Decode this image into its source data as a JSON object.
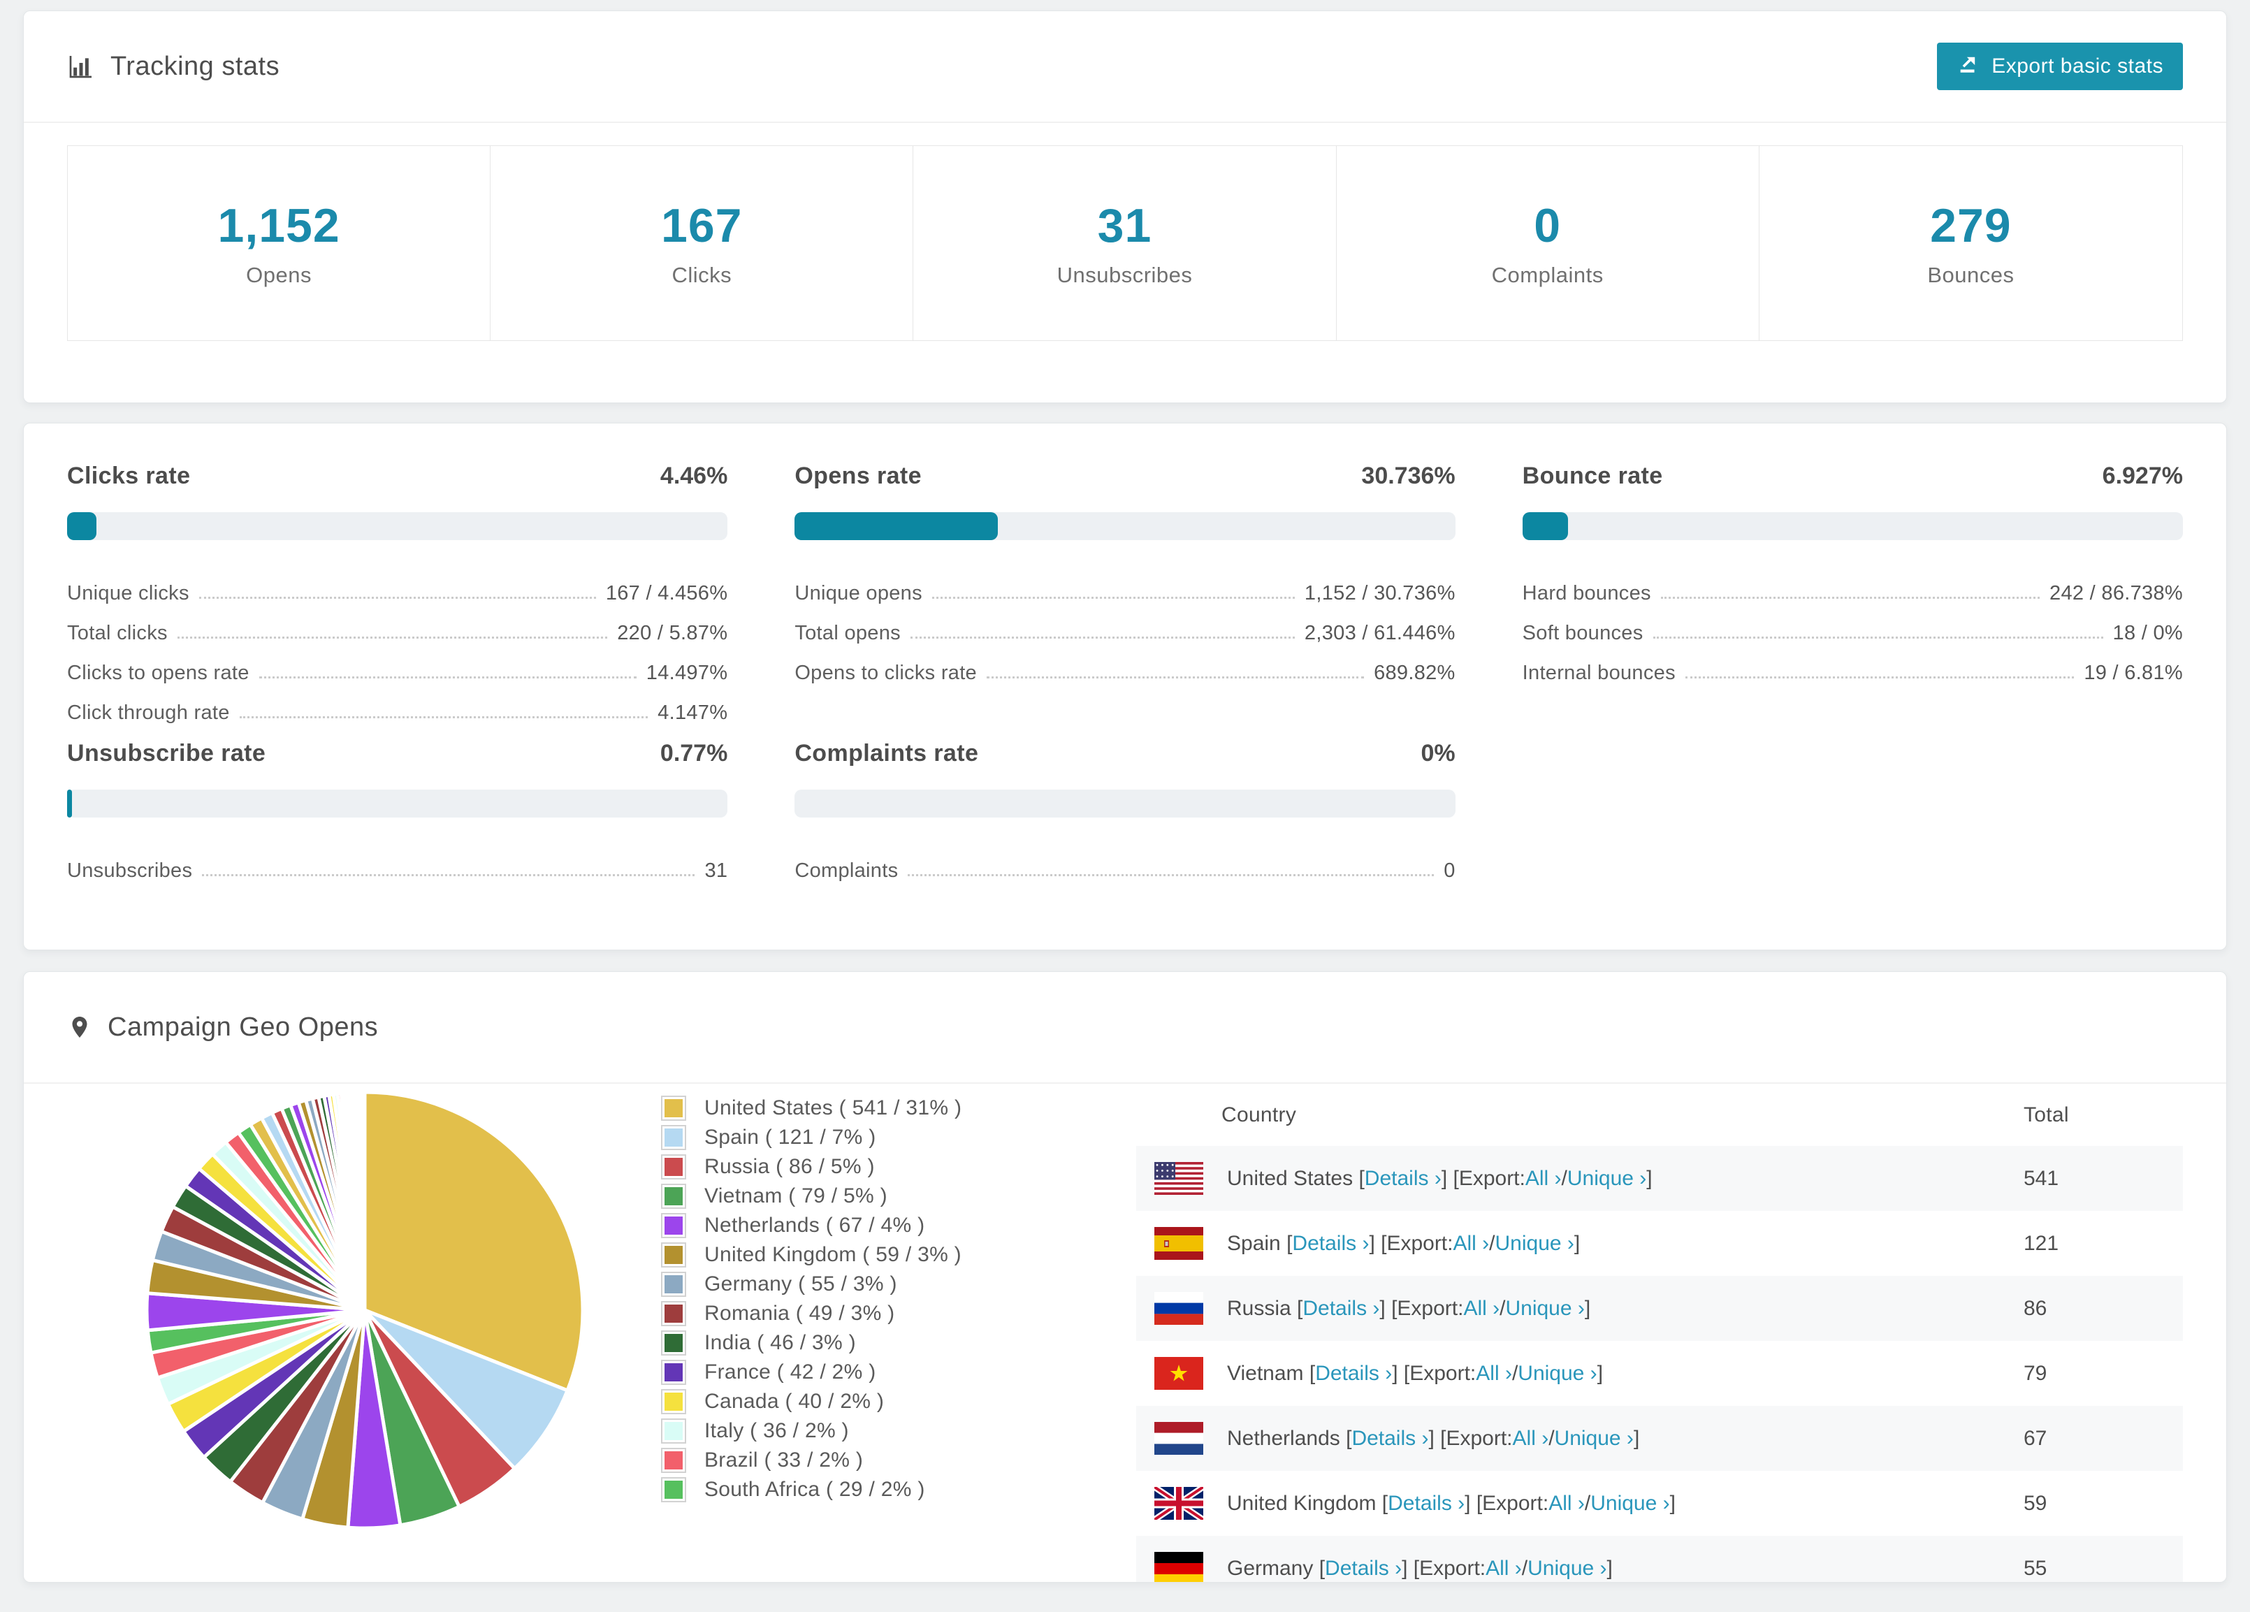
{
  "colors": {
    "accent": "#0c87a1",
    "number_teal": "#1b8aab",
    "link": "#2a96bb",
    "bar_track": "#edf0f3",
    "stripe": "#f7f8f9",
    "button_bg": "#1a93ad"
  },
  "tracking": {
    "title": "Tracking stats",
    "export_button": "Export basic stats",
    "stats": [
      {
        "value": "1,152",
        "label": "Opens"
      },
      {
        "value": "167",
        "label": "Clicks"
      },
      {
        "value": "31",
        "label": "Unsubscribes"
      },
      {
        "value": "0",
        "label": "Complaints"
      },
      {
        "value": "279",
        "label": "Bounces"
      }
    ]
  },
  "rates": {
    "blocks": [
      {
        "title": "Clicks rate",
        "pct": "4.46%",
        "fill_pct": 4.46,
        "rows": [
          {
            "label": "Unique clicks",
            "value": "167 / 4.456%"
          },
          {
            "label": "Total clicks",
            "value": "220 / 5.87%"
          },
          {
            "label": "Clicks to opens rate",
            "value": "14.497%"
          },
          {
            "label": "Click through rate",
            "value": "4.147%"
          }
        ]
      },
      {
        "title": "Opens rate",
        "pct": "30.736%",
        "fill_pct": 30.736,
        "rows": [
          {
            "label": "Unique opens",
            "value": "1,152 / 30.736%"
          },
          {
            "label": "Total opens",
            "value": "2,303 / 61.446%"
          },
          {
            "label": "Opens to clicks rate",
            "value": "689.82%"
          }
        ]
      },
      {
        "title": "Bounce rate",
        "pct": "6.927%",
        "fill_pct": 6.927,
        "rows": [
          {
            "label": "Hard bounces",
            "value": "242 / 86.738%"
          },
          {
            "label": "Soft bounces",
            "value": "18 / 0%"
          },
          {
            "label": "Internal bounces",
            "value": "19 / 6.81%"
          }
        ]
      },
      {
        "title": "Unsubscribe rate",
        "pct": "0.77%",
        "fill_pct": 0.77,
        "rows": [
          {
            "label": "Unsubscribes",
            "value": "31"
          }
        ]
      },
      {
        "title": "Complaints rate",
        "pct": "0%",
        "fill_pct": 0,
        "rows": [
          {
            "label": "Complaints",
            "value": "0"
          }
        ]
      }
    ]
  },
  "geo": {
    "title": "Campaign Geo Opens",
    "table": {
      "col_country": "Country",
      "col_total": "Total",
      "tokens": {
        "open": " [",
        "close_open": "] [",
        "export_label": "Export: ",
        "slash": " / ",
        "close": "]"
      },
      "link_details": "Details ›",
      "link_all": "All ›",
      "link_unique": "Unique ›",
      "rows": [
        {
          "country": "United States",
          "flag": "us",
          "total": "541"
        },
        {
          "country": "Spain",
          "flag": "es",
          "total": "121"
        },
        {
          "country": "Russia",
          "flag": "ru",
          "total": "86"
        },
        {
          "country": "Vietnam",
          "flag": "vn",
          "total": "79"
        },
        {
          "country": "Netherlands",
          "flag": "nl",
          "total": "67"
        },
        {
          "country": "United Kingdom",
          "flag": "gb",
          "total": "59"
        },
        {
          "country": "Germany",
          "flag": "de",
          "total": "55",
          "partial": true
        }
      ]
    }
  },
  "chart_data": {
    "type": "pie",
    "title": "Campaign Geo Opens",
    "unit": "opens",
    "start_angle_deg": -90,
    "direction": "clockwise",
    "legend_position": "right",
    "total_estimate": 1745,
    "slices": [
      {
        "name": "United States",
        "value": 541,
        "pct": 31,
        "color": "#E2BF4B"
      },
      {
        "name": "Spain",
        "value": 121,
        "pct": 7,
        "color": "#B5D9F2"
      },
      {
        "name": "Russia",
        "value": 86,
        "pct": 5,
        "color": "#CB4B4E"
      },
      {
        "name": "Vietnam",
        "value": 79,
        "pct": 5,
        "color": "#4CA456"
      },
      {
        "name": "Netherlands",
        "value": 67,
        "pct": 4,
        "color": "#9C45EC"
      },
      {
        "name": "United Kingdom",
        "value": 59,
        "pct": 3,
        "color": "#B3912F"
      },
      {
        "name": "Germany",
        "value": 55,
        "pct": 3,
        "color": "#8CA9C2"
      },
      {
        "name": "Romania",
        "value": 49,
        "pct": 3,
        "color": "#9E3D3D"
      },
      {
        "name": "India",
        "value": 46,
        "pct": 3,
        "color": "#2F6C36"
      },
      {
        "name": "France",
        "value": 42,
        "pct": 2,
        "color": "#6336B6"
      },
      {
        "name": "Canada",
        "value": 40,
        "pct": 2,
        "color": "#F5E13E"
      },
      {
        "name": "Italy",
        "value": 36,
        "pct": 2,
        "color": "#D9FCF6"
      },
      {
        "name": "Brazil",
        "value": 33,
        "pct": 2,
        "color": "#F2606B"
      },
      {
        "name": "South Africa",
        "value": 29,
        "pct": 2,
        "color": "#56C05E"
      }
    ],
    "others": {
      "note": "unlabeled tail of many small slices",
      "approx_total_value": 462,
      "approx_count": 35
    }
  }
}
